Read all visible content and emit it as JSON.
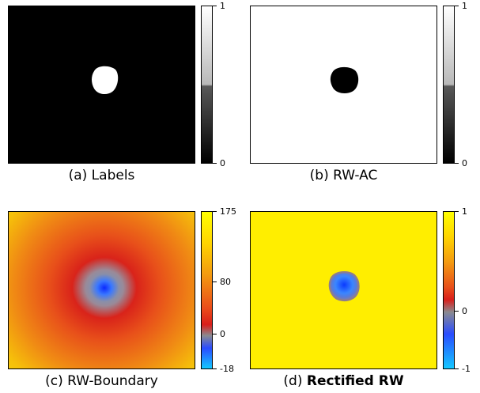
{
  "panels": {
    "a": {
      "caption": "(a) Labels",
      "ticks": [
        "1",
        "0"
      ]
    },
    "b": {
      "caption": "(b) RW-AC",
      "ticks": [
        "1",
        "0"
      ]
    },
    "c": {
      "caption": "(c) RW-Boundary",
      "ticks": [
        "175",
        "80",
        "0",
        "-18"
      ]
    },
    "d": {
      "caption_prefix": "(d) ",
      "caption_bold": "Rectified RW",
      "ticks": [
        "1",
        "0",
        "-1"
      ]
    }
  },
  "colors": {
    "black": "#000000",
    "white": "#ffffff",
    "yellow": "#ffee00",
    "red": "#e52a1a",
    "blue": "#2f6cff",
    "cyan": "#12c6ff"
  }
}
